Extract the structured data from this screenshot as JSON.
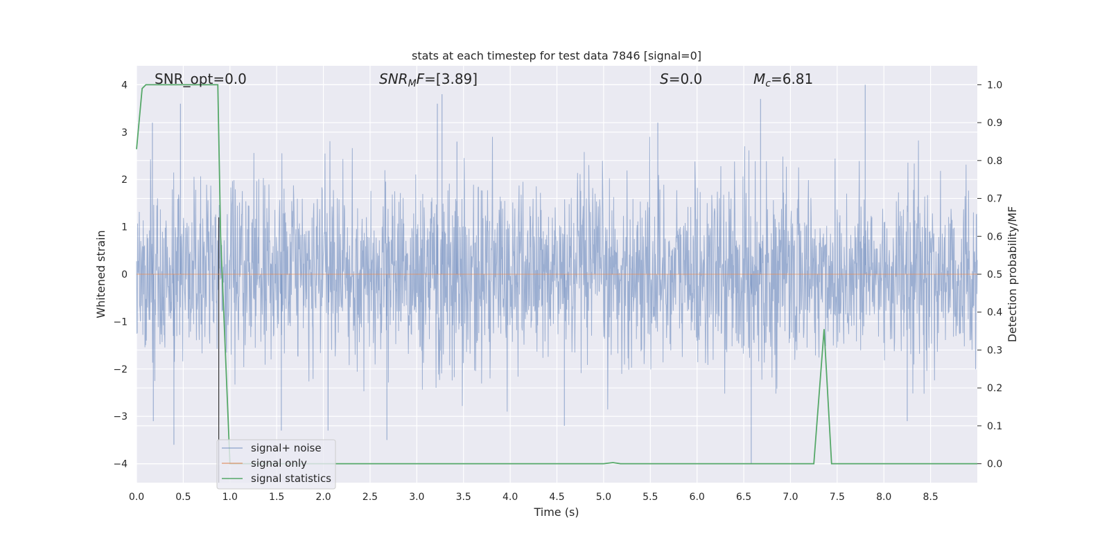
{
  "chart_data": {
    "type": "line",
    "title": "stats at each timestep for test data 7846 [signal=0]",
    "xlabel": "Time (s)",
    "ylabel_left": "Whitened strain",
    "ylabel_right": "Detection probability/MF",
    "xlim": [
      0,
      9.0
    ],
    "ylim_left": [
      -4.4,
      4.4
    ],
    "ylim_right": [
      -0.05,
      1.05
    ],
    "grid": true,
    "x_ticks": [
      "0.0",
      "0.5",
      "1.0",
      "1.5",
      "2.0",
      "2.5",
      "3.0",
      "3.5",
      "4.0",
      "4.5",
      "5.0",
      "5.5",
      "6.0",
      "6.5",
      "7.0",
      "7.5",
      "8.0",
      "8.5"
    ],
    "y_ticks_left": [
      "−4",
      "−3",
      "−2",
      "−1",
      "0",
      "1",
      "2",
      "3",
      "4"
    ],
    "y_ticks_right": [
      "0.0",
      "0.1",
      "0.2",
      "0.3",
      "0.4",
      "0.5",
      "0.6",
      "0.7",
      "0.8",
      "0.9",
      "1.0"
    ],
    "annotations": {
      "snr_opt": "SNR_opt=0.0",
      "snr_mf_main": "SNR",
      "snr_mf_sub": "M",
      "snr_mf_rest": "F=[3.89]",
      "s_main": "S",
      "s_rest": "=0.0",
      "mc_main": "M",
      "mc_sub": "c",
      "mc_rest": "=6.81"
    },
    "vertical_line_x": 0.88,
    "legend": {
      "placement": "lower-left",
      "items": [
        "signal+ noise",
        "signal only",
        "signal statistics"
      ]
    },
    "series": [
      {
        "name": "signal+ noise",
        "axis": "left",
        "color": "#4c72b0",
        "note_values": "dense whitened strain noise, peaks approx -3.6 to 4.0",
        "peaks": [
          {
            "x": 0.17,
            "y": 3.2
          },
          {
            "x": 0.18,
            "y": -3.1
          },
          {
            "x": 0.4,
            "y": -3.6
          },
          {
            "x": 0.47,
            "y": 3.6
          },
          {
            "x": 1.55,
            "y": -3.3
          },
          {
            "x": 2.05,
            "y": -3.3
          },
          {
            "x": 2.68,
            "y": -3.5
          },
          {
            "x": 3.22,
            "y": 3.6
          },
          {
            "x": 3.27,
            "y": 3.8
          },
          {
            "x": 3.43,
            "y": 2.8
          },
          {
            "x": 4.58,
            "y": -3.2
          },
          {
            "x": 5.58,
            "y": 3.2
          },
          {
            "x": 6.58,
            "y": -4.0
          },
          {
            "x": 6.68,
            "y": 3.7
          },
          {
            "x": 7.8,
            "y": 4.0
          },
          {
            "x": 8.25,
            "y": -3.1
          }
        ]
      },
      {
        "name": "signal only",
        "axis": "left",
        "color": "#dd8452",
        "x": [
          0.0,
          9.0
        ],
        "y": [
          0.0,
          0.0
        ]
      },
      {
        "name": "signal statistics",
        "axis": "right",
        "color": "#55a868",
        "x": [
          0.0,
          0.06,
          0.1,
          0.2,
          0.5,
          0.8,
          0.87,
          0.9,
          1.0,
          1.1,
          2.0,
          3.0,
          4.0,
          5.0,
          5.1,
          5.18,
          6.0,
          7.0,
          7.25,
          7.36,
          7.44,
          8.0,
          9.0
        ],
        "y": [
          0.83,
          0.99,
          1.0,
          1.0,
          1.0,
          1.0,
          1.0,
          0.6,
          0.0,
          0.0,
          0.0,
          0.0,
          0.0,
          0.0,
          0.003,
          0.0,
          0.0,
          0.0,
          0.0,
          0.355,
          0.0,
          0.0,
          0.0
        ]
      }
    ]
  }
}
